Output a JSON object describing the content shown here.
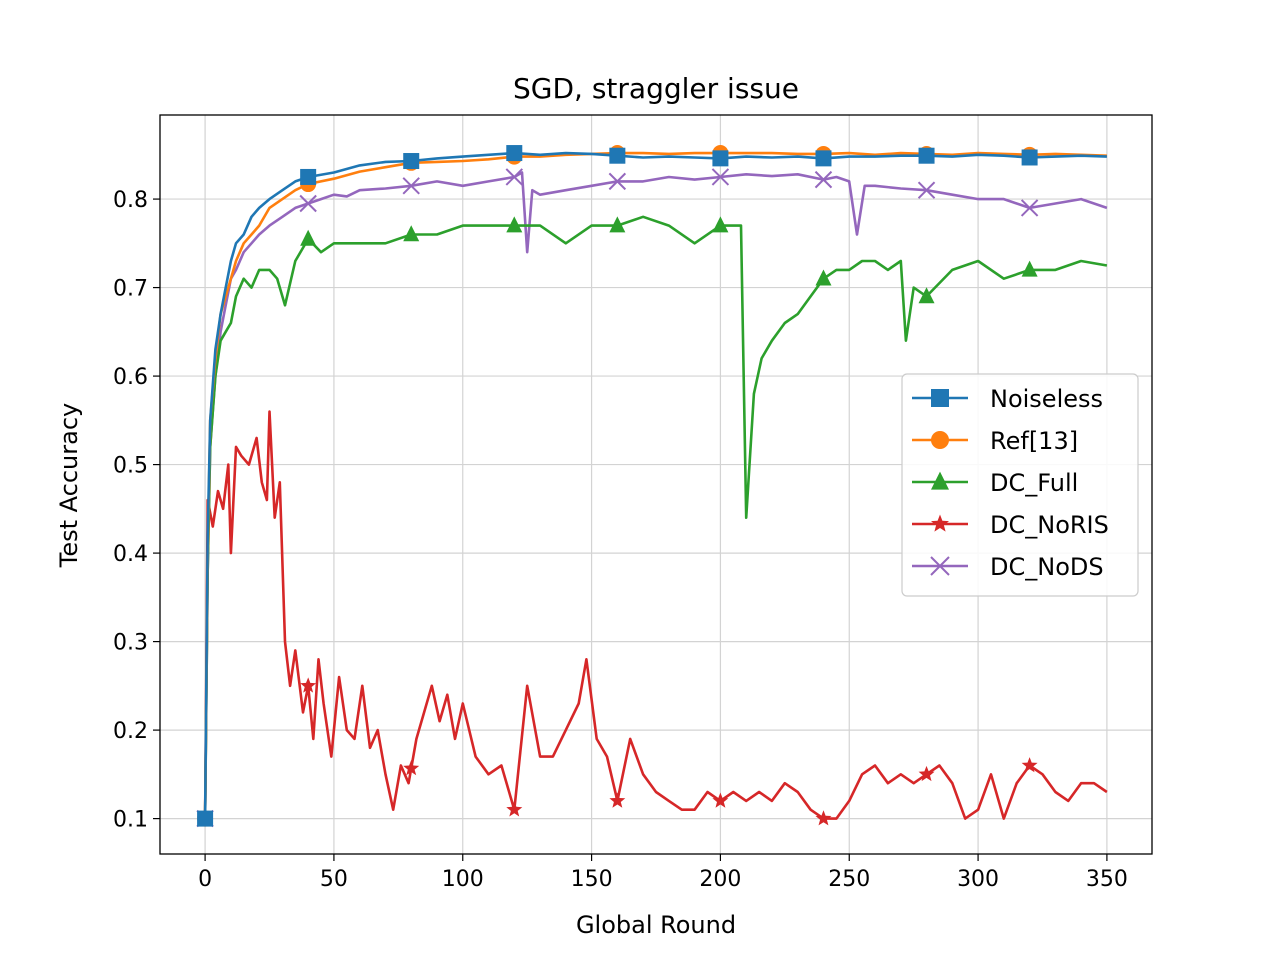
{
  "chart_data": {
    "type": "line",
    "title": "SGD, straggler issue",
    "xlabel": "Global Round",
    "ylabel": "Test Accuracy",
    "xlim": [
      -17.5,
      367.5
    ],
    "ylim": [
      0.06,
      0.895
    ],
    "xticks": [
      0,
      50,
      100,
      150,
      200,
      250,
      300,
      350
    ],
    "yticks": [
      0.1,
      0.2,
      0.3,
      0.4,
      0.5,
      0.6,
      0.7,
      0.8
    ],
    "grid": true,
    "legend_position": "center-right",
    "series": [
      {
        "name": "Noiseless",
        "color": "#1f77b4",
        "marker": "square",
        "x": [
          0,
          1,
          2,
          4,
          6,
          8,
          10,
          12,
          15,
          18,
          21,
          25,
          30,
          35,
          40,
          50,
          60,
          70,
          80,
          90,
          100,
          110,
          120,
          130,
          140,
          150,
          160,
          170,
          180,
          190,
          200,
          210,
          220,
          230,
          240,
          250,
          260,
          270,
          280,
          290,
          300,
          310,
          320,
          330,
          340,
          350
        ],
        "y": [
          0.1,
          0.42,
          0.55,
          0.63,
          0.67,
          0.7,
          0.73,
          0.75,
          0.76,
          0.78,
          0.79,
          0.8,
          0.81,
          0.82,
          0.825,
          0.83,
          0.838,
          0.842,
          0.843,
          0.846,
          0.848,
          0.85,
          0.852,
          0.85,
          0.852,
          0.851,
          0.849,
          0.847,
          0.848,
          0.847,
          0.846,
          0.848,
          0.847,
          0.848,
          0.846,
          0.848,
          0.848,
          0.849,
          0.849,
          0.848,
          0.85,
          0.849,
          0.847,
          0.848,
          0.849,
          0.848
        ]
      },
      {
        "name": "Ref[13]",
        "color": "#ff7f0e",
        "marker": "circle",
        "x": [
          0,
          1,
          2,
          4,
          6,
          8,
          10,
          12,
          15,
          18,
          21,
          25,
          30,
          35,
          40,
          50,
          60,
          70,
          80,
          90,
          100,
          110,
          120,
          130,
          140,
          150,
          160,
          170,
          180,
          190,
          200,
          210,
          220,
          230,
          240,
          250,
          260,
          270,
          280,
          290,
          300,
          310,
          320,
          330,
          340,
          350
        ],
        "y": [
          0.1,
          0.4,
          0.55,
          0.62,
          0.67,
          0.69,
          0.71,
          0.73,
          0.75,
          0.76,
          0.77,
          0.79,
          0.8,
          0.81,
          0.817,
          0.823,
          0.831,
          0.836,
          0.841,
          0.842,
          0.843,
          0.845,
          0.848,
          0.848,
          0.85,
          0.851,
          0.852,
          0.852,
          0.851,
          0.852,
          0.852,
          0.852,
          0.852,
          0.851,
          0.851,
          0.852,
          0.85,
          0.852,
          0.851,
          0.85,
          0.852,
          0.851,
          0.85,
          0.851,
          0.85,
          0.849
        ]
      },
      {
        "name": "DC_Full",
        "color": "#2ca02c",
        "marker": "triangle",
        "x": [
          0,
          1,
          2,
          4,
          6,
          8,
          10,
          12,
          15,
          18,
          21,
          25,
          28,
          31,
          35,
          40,
          45,
          50,
          60,
          70,
          80,
          90,
          100,
          110,
          120,
          130,
          140,
          150,
          160,
          170,
          180,
          190,
          200,
          205,
          208,
          210,
          213,
          216,
          220,
          225,
          230,
          235,
          240,
          245,
          250,
          255,
          260,
          265,
          270,
          272,
          275,
          280,
          290,
          300,
          310,
          320,
          330,
          340,
          350
        ],
        "y": [
          0.1,
          0.38,
          0.52,
          0.6,
          0.64,
          0.65,
          0.66,
          0.69,
          0.71,
          0.7,
          0.72,
          0.72,
          0.71,
          0.68,
          0.73,
          0.755,
          0.74,
          0.75,
          0.75,
          0.75,
          0.76,
          0.76,
          0.77,
          0.77,
          0.77,
          0.77,
          0.75,
          0.77,
          0.77,
          0.78,
          0.77,
          0.75,
          0.77,
          0.77,
          0.77,
          0.44,
          0.58,
          0.62,
          0.64,
          0.66,
          0.67,
          0.69,
          0.71,
          0.72,
          0.72,
          0.73,
          0.73,
          0.72,
          0.73,
          0.64,
          0.7,
          0.69,
          0.72,
          0.73,
          0.71,
          0.72,
          0.72,
          0.73,
          0.725
        ]
      },
      {
        "name": "DC_NoRIS",
        "color": "#d62728",
        "marker": "star",
        "x": [
          0,
          1,
          3,
          5,
          7,
          9,
          10,
          12,
          14,
          17,
          20,
          22,
          24,
          25,
          27,
          29,
          31,
          33,
          35,
          38,
          40,
          42,
          44,
          46,
          49,
          52,
          55,
          58,
          61,
          64,
          67,
          70,
          73,
          76,
          79,
          82,
          85,
          88,
          91,
          94,
          97,
          100,
          105,
          110,
          115,
          120,
          125,
          130,
          135,
          140,
          145,
          148,
          152,
          156,
          160,
          165,
          170,
          175,
          180,
          185,
          190,
          195,
          200,
          205,
          210,
          215,
          220,
          225,
          230,
          235,
          240,
          245,
          250,
          255,
          260,
          265,
          270,
          275,
          280,
          285,
          290,
          295,
          300,
          305,
          310,
          315,
          320,
          325,
          330,
          335,
          340,
          345,
          350
        ],
        "y": [
          0.1,
          0.46,
          0.43,
          0.47,
          0.45,
          0.5,
          0.4,
          0.52,
          0.51,
          0.5,
          0.53,
          0.48,
          0.46,
          0.56,
          0.44,
          0.48,
          0.3,
          0.25,
          0.29,
          0.22,
          0.25,
          0.19,
          0.28,
          0.23,
          0.17,
          0.26,
          0.2,
          0.19,
          0.25,
          0.18,
          0.2,
          0.15,
          0.11,
          0.16,
          0.14,
          0.19,
          0.22,
          0.25,
          0.21,
          0.24,
          0.19,
          0.23,
          0.17,
          0.15,
          0.16,
          0.11,
          0.25,
          0.17,
          0.17,
          0.2,
          0.23,
          0.28,
          0.19,
          0.17,
          0.12,
          0.19,
          0.15,
          0.13,
          0.12,
          0.11,
          0.11,
          0.13,
          0.12,
          0.13,
          0.12,
          0.13,
          0.12,
          0.14,
          0.13,
          0.11,
          0.1,
          0.1,
          0.12,
          0.15,
          0.16,
          0.14,
          0.15,
          0.14,
          0.15,
          0.16,
          0.14,
          0.1,
          0.11,
          0.15,
          0.1,
          0.14,
          0.16,
          0.15,
          0.13,
          0.12,
          0.14,
          0.14,
          0.13
        ]
      },
      {
        "name": "DC_NoDS",
        "color": "#9467bd",
        "marker": "x",
        "x": [
          0,
          1,
          2,
          4,
          6,
          8,
          10,
          12,
          15,
          18,
          21,
          25,
          30,
          35,
          40,
          45,
          50,
          55,
          60,
          70,
          80,
          90,
          100,
          110,
          120,
          123,
          125,
          127,
          130,
          140,
          150,
          160,
          170,
          180,
          190,
          200,
          210,
          220,
          230,
          240,
          245,
          250,
          253,
          256,
          260,
          270,
          280,
          290,
          300,
          310,
          320,
          330,
          340,
          345,
          350
        ],
        "y": [
          0.1,
          0.38,
          0.52,
          0.6,
          0.65,
          0.68,
          0.71,
          0.72,
          0.74,
          0.75,
          0.76,
          0.77,
          0.78,
          0.79,
          0.795,
          0.8,
          0.805,
          0.803,
          0.81,
          0.812,
          0.815,
          0.82,
          0.815,
          0.82,
          0.825,
          0.83,
          0.74,
          0.81,
          0.805,
          0.81,
          0.815,
          0.82,
          0.82,
          0.825,
          0.822,
          0.825,
          0.828,
          0.826,
          0.828,
          0.822,
          0.825,
          0.82,
          0.76,
          0.815,
          0.815,
          0.812,
          0.81,
          0.805,
          0.8,
          0.8,
          0.79,
          0.795,
          0.8,
          0.795,
          0.79
        ]
      }
    ]
  }
}
